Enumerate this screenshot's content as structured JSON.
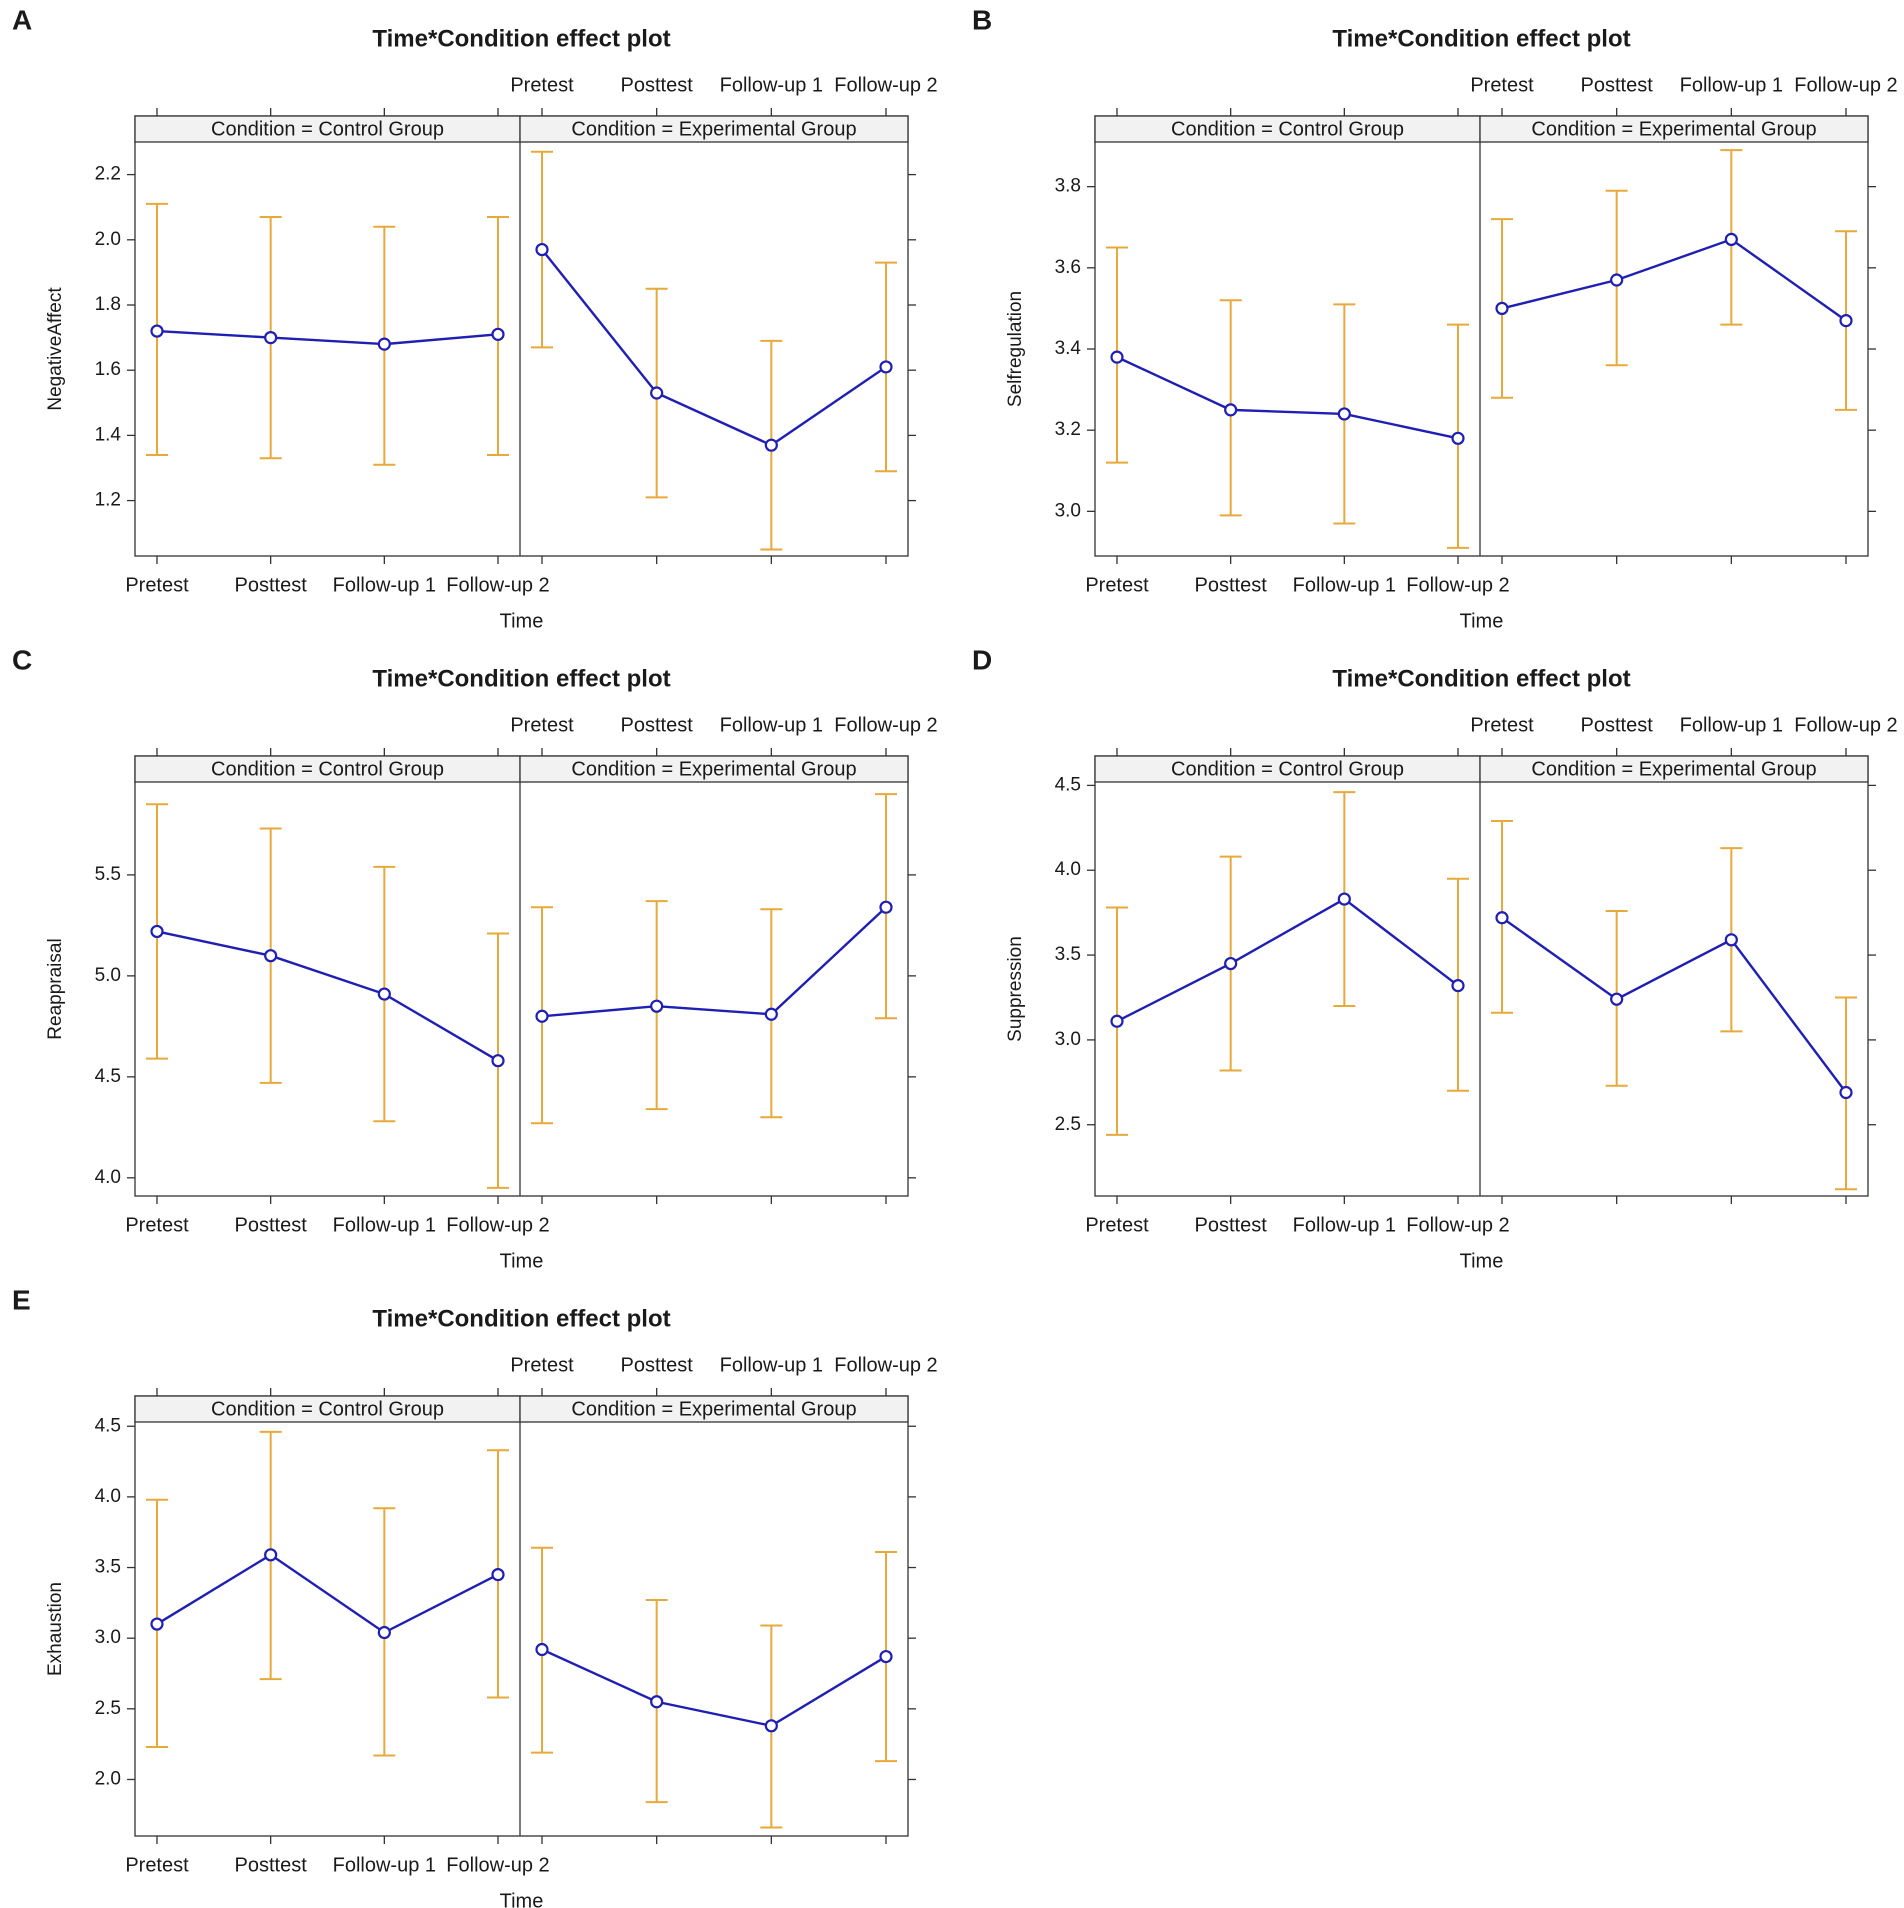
{
  "colors": {
    "line": "#1f1fb4",
    "error_bar": "#e8a93b",
    "strip_fill": "#f2f2f2",
    "axis": "#333333",
    "text": "#1a1a1a"
  },
  "chart_data": [
    {
      "panel": "A",
      "type": "line",
      "title": "Time*Condition effect plot",
      "xlabel": "Time",
      "ylabel": "NegativeAffect",
      "categories": [
        "Pretest",
        "Posttest",
        "Follow-up 1",
        "Follow-up 2"
      ],
      "ylim": [
        1.03,
        2.3
      ],
      "yticks": [
        1.2,
        1.4,
        1.6,
        1.8,
        2.0,
        2.2
      ],
      "ytick_labels": [
        "1.2",
        "1.4",
        "1.6",
        "1.8",
        "2.0",
        "2.2"
      ],
      "groups": [
        {
          "strip": "Condition = Control Group",
          "values": [
            1.72,
            1.7,
            1.68,
            1.71
          ],
          "lower": [
            1.34,
            1.33,
            1.31,
            1.34
          ],
          "upper": [
            2.11,
            2.07,
            2.04,
            2.07
          ]
        },
        {
          "strip": "Condition = Experimental Group",
          "values": [
            1.97,
            1.53,
            1.37,
            1.61
          ],
          "lower": [
            1.67,
            1.21,
            1.05,
            1.29
          ],
          "upper": [
            2.27,
            1.85,
            1.69,
            1.93
          ]
        }
      ]
    },
    {
      "panel": "B",
      "type": "line",
      "title": "Time*Condition effect plot",
      "xlabel": "Time",
      "ylabel": "Selfregulation",
      "categories": [
        "Pretest",
        "Posttest",
        "Follow-up 1",
        "Follow-up 2"
      ],
      "ylim": [
        2.89,
        3.91
      ],
      "yticks": [
        3.0,
        3.2,
        3.4,
        3.6,
        3.8
      ],
      "ytick_labels": [
        "3.0",
        "3.2",
        "3.4",
        "3.6",
        "3.8"
      ],
      "groups": [
        {
          "strip": "Condition = Control Group",
          "values": [
            3.38,
            3.25,
            3.24,
            3.18
          ],
          "lower": [
            3.12,
            2.99,
            2.97,
            2.91
          ],
          "upper": [
            3.65,
            3.52,
            3.51,
            3.46
          ]
        },
        {
          "strip": "Condition = Experimental Group",
          "values": [
            3.5,
            3.57,
            3.67,
            3.47
          ],
          "lower": [
            3.28,
            3.36,
            3.46,
            3.25
          ],
          "upper": [
            3.72,
            3.79,
            3.89,
            3.69
          ]
        }
      ]
    },
    {
      "panel": "C",
      "type": "line",
      "title": "Time*Condition effect plot",
      "xlabel": "Time",
      "ylabel": "Reappraisal",
      "categories": [
        "Pretest",
        "Posttest",
        "Follow-up 1",
        "Follow-up 2"
      ],
      "ylim": [
        3.91,
        5.96
      ],
      "yticks": [
        4.0,
        4.5,
        5.0,
        5.5
      ],
      "ytick_labels": [
        "4.0",
        "4.5",
        "5.0",
        "5.5"
      ],
      "groups": [
        {
          "strip": "Condition = Control Group",
          "values": [
            5.22,
            5.1,
            4.91,
            4.58
          ],
          "lower": [
            4.59,
            4.47,
            4.28,
            3.95
          ],
          "upper": [
            5.85,
            5.73,
            5.54,
            5.21
          ]
        },
        {
          "strip": "Condition = Experimental Group",
          "values": [
            4.8,
            4.85,
            4.81,
            5.34
          ],
          "lower": [
            4.27,
            4.34,
            4.3,
            4.79
          ],
          "upper": [
            5.34,
            5.37,
            5.33,
            5.9
          ]
        }
      ]
    },
    {
      "panel": "D",
      "type": "line",
      "title": "Time*Condition effect plot",
      "xlabel": "Time",
      "ylabel": "Suppression",
      "categories": [
        "Pretest",
        "Posttest",
        "Follow-up 1",
        "Follow-up 2"
      ],
      "ylim": [
        2.08,
        4.52
      ],
      "yticks": [
        2.5,
        3.0,
        3.5,
        4.0,
        4.5
      ],
      "ytick_labels": [
        "2.5",
        "3.0",
        "3.5",
        "4.0",
        "4.5"
      ],
      "groups": [
        {
          "strip": "Condition = Control Group",
          "values": [
            3.11,
            3.45,
            3.83,
            3.32
          ],
          "lower": [
            2.44,
            2.82,
            3.2,
            2.7
          ],
          "upper": [
            3.78,
            4.08,
            4.46,
            3.95
          ]
        },
        {
          "strip": "Condition = Experimental Group",
          "values": [
            3.72,
            3.24,
            3.59,
            2.69
          ],
          "lower": [
            3.16,
            2.73,
            3.05,
            2.12
          ],
          "upper": [
            4.29,
            3.76,
            4.13,
            3.25
          ]
        }
      ]
    },
    {
      "panel": "E",
      "type": "line",
      "title": "Time*Condition effect plot",
      "xlabel": "Time",
      "ylabel": "Exhaustion",
      "categories": [
        "Pretest",
        "Posttest",
        "Follow-up 1",
        "Follow-up 2"
      ],
      "ylim": [
        1.6,
        4.53
      ],
      "yticks": [
        2.0,
        2.5,
        3.0,
        3.5,
        4.0,
        4.5
      ],
      "ytick_labels": [
        "2.0",
        "2.5",
        "3.0",
        "3.5",
        "4.0",
        "4.5"
      ],
      "groups": [
        {
          "strip": "Condition = Control Group",
          "values": [
            3.1,
            3.59,
            3.04,
            3.45
          ],
          "lower": [
            2.23,
            2.71,
            2.17,
            2.58
          ],
          "upper": [
            3.98,
            4.46,
            3.92,
            4.33
          ]
        },
        {
          "strip": "Condition = Experimental Group",
          "values": [
            2.92,
            2.55,
            2.38,
            2.87
          ],
          "lower": [
            2.19,
            1.84,
            1.66,
            2.13
          ],
          "upper": [
            3.64,
            3.27,
            3.09,
            3.61
          ]
        }
      ]
    }
  ]
}
